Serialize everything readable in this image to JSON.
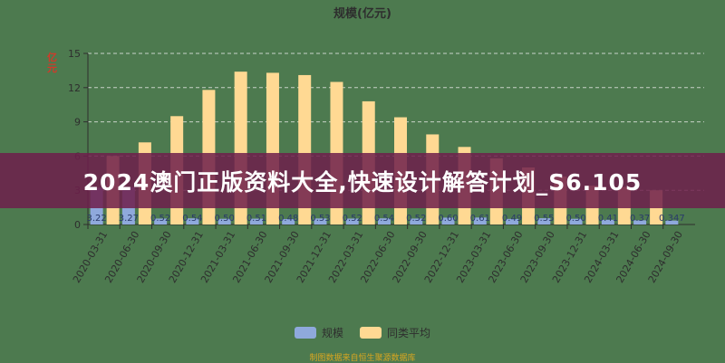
{
  "chart_data": {
    "type": "bar",
    "title": "规模(亿元)",
    "ylabel": "亿元",
    "xlabel": "",
    "ylim": [
      0,
      15
    ],
    "yticks": [
      0,
      3,
      6,
      9,
      12,
      15
    ],
    "grid": true,
    "legend_position": "bottom",
    "categories": [
      "2020-03-31",
      "2020-06-30",
      "2020-09-30",
      "2020-12-31",
      "2021-03-31",
      "2021-06-30",
      "2021-09-30",
      "2021-12-31",
      "2022-03-31",
      "2022-06-30",
      "2022-09-30",
      "2022-12-31",
      "2023-03-31",
      "2023-06-30",
      "2023-09-30",
      "2023-12-31",
      "2024-03-31",
      "2024-06-30",
      "2024-09-30"
    ],
    "series": [
      {
        "name": "规模",
        "color": "#8fa9dc",
        "values": [
          3.22,
          3.27,
          0.52,
          0.54,
          0.5,
          0.51,
          0.48,
          0.53,
          0.52,
          0.54,
          0.52,
          0.6,
          0.61,
          0.49,
          0.55,
          0.5,
          0.41,
          0.37,
          0.347
        ],
        "labels": [
          "3.22",
          "3.27",
          "0.52",
          "0.54",
          "0.50",
          "0.51",
          "0.48",
          "0.53",
          "0.52",
          "0.54",
          "0.52",
          "0.60",
          "0.61",
          "0.49",
          "0.55",
          "0.50",
          "0.41",
          "0.37",
          "0.347"
        ]
      },
      {
        "name": "同类平均",
        "color": "#ffd993",
        "values": [
          6.0,
          7.2,
          9.5,
          11.8,
          13.4,
          13.3,
          13.1,
          12.5,
          10.8,
          9.4,
          7.9,
          6.8,
          5.8,
          5.0,
          4.2,
          3.4,
          3.3,
          3.0,
          null
        ]
      }
    ]
  },
  "source": "制图数据来自恒生聚源数据库",
  "banner": {
    "text": "2024澳门正版资料大全,快速设计解答计划_S6.105"
  },
  "colors": {
    "background": "#4d7a4f",
    "banner": "#6e1e4b"
  }
}
